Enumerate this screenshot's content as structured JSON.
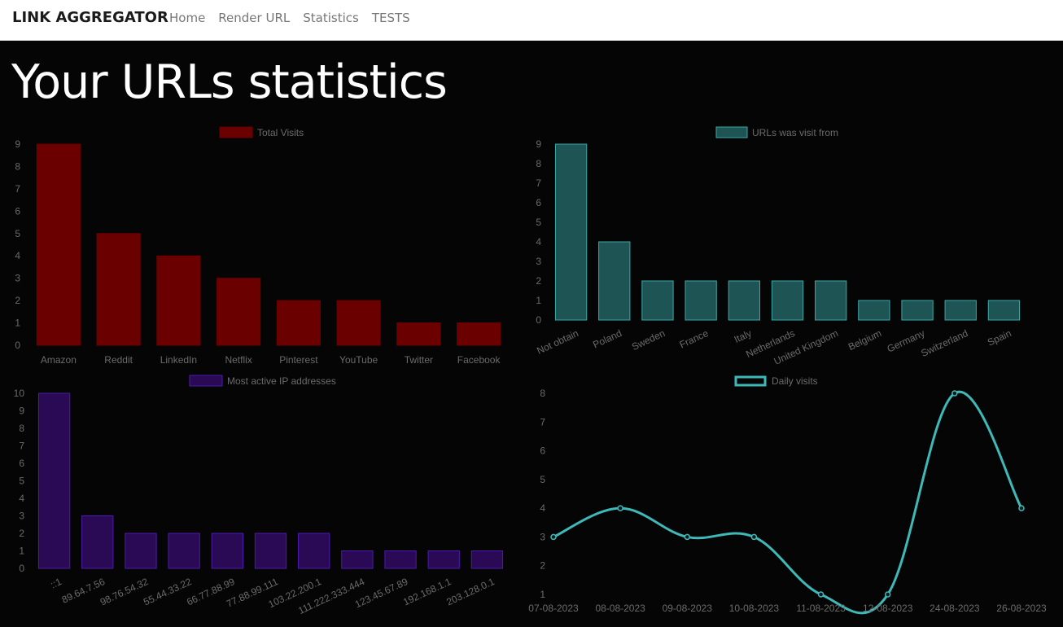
{
  "navbar": {
    "brand": "LINK AGGREGATOR",
    "links": [
      "Home",
      "Render URL",
      "Statistics",
      "TESTS"
    ]
  },
  "page": {
    "title": "Your URLs statistics"
  },
  "colors": {
    "background": "#050505",
    "visits_bar": "#6b0000",
    "country_bar": "#1f5454",
    "country_border": "#3aa8a8",
    "ip_bar": "#2a0a55",
    "ip_border": "#4b1ab0",
    "line": "#3fb8b8"
  },
  "chart_data": [
    {
      "id": "visits",
      "type": "bar",
      "legend": "Total Visits",
      "categories": [
        "Amazon",
        "Reddit",
        "LinkedIn",
        "Netflix",
        "Pinterest",
        "YouTube",
        "Twitter",
        "Facebook"
      ],
      "values": [
        9,
        5,
        4,
        3,
        2,
        2,
        1,
        1
      ],
      "ylim": [
        0,
        9
      ],
      "yticks": [
        0,
        1,
        2,
        3,
        4,
        5,
        6,
        7,
        8,
        9
      ],
      "xlabel_rotate": false
    },
    {
      "id": "countries",
      "type": "bar",
      "legend": "URLs was visit from",
      "categories": [
        "Not obtain",
        "Poland",
        "Sweden",
        "France",
        "Italy",
        "Netherlands",
        "United Kingdom",
        "Belgium",
        "Germany",
        "Switzerland",
        "Spain"
      ],
      "values": [
        9,
        4,
        2,
        2,
        2,
        2,
        2,
        1,
        1,
        1,
        1
      ],
      "ylim": [
        0,
        9
      ],
      "yticks": [
        0,
        1,
        2,
        3,
        4,
        5,
        6,
        7,
        8,
        9
      ],
      "xlabel_rotate": true
    },
    {
      "id": "ips",
      "type": "bar",
      "legend": "Most active IP addresses",
      "categories": [
        "::1",
        "89.64.7.56",
        "98.76.54.32",
        "55.44.33.22",
        "66.77.88.99",
        "77.88.99.111",
        "103.22.200.1",
        "111.222.333.444",
        "123.45.67.89",
        "192.168.1.1",
        "203.128.0.1"
      ],
      "values": [
        10,
        3,
        2,
        2,
        2,
        2,
        2,
        1,
        1,
        1,
        1
      ],
      "ylim": [
        0,
        10
      ],
      "yticks": [
        0,
        1,
        2,
        3,
        4,
        5,
        6,
        7,
        8,
        9,
        10
      ],
      "xlabel_rotate": true
    },
    {
      "id": "daily",
      "type": "line",
      "legend": "Daily visits",
      "categories": [
        "07-08-2023",
        "08-08-2023",
        "09-08-2023",
        "10-08-2023",
        "11-08-2023",
        "12-08-2023",
        "24-08-2023",
        "26-08-2023"
      ],
      "values": [
        3,
        4,
        3,
        3,
        1,
        1,
        8,
        4
      ],
      "ylim": [
        1,
        8
      ],
      "yticks": [
        1,
        2,
        3,
        4,
        5,
        6,
        7,
        8
      ],
      "xlabel_rotate": false
    }
  ]
}
